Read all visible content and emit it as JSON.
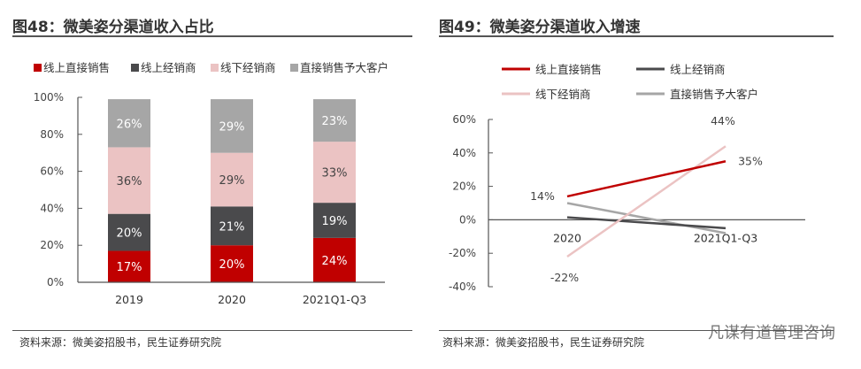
{
  "left": {
    "title": "图48：微美姿分渠道收入占比",
    "source": "资料来源：微美姿招股书，民生证券研究院"
  },
  "right": {
    "title": "图49：微美姿分渠道收入增速",
    "source": "资料来源：微美姿招股书，民生证券研究院"
  },
  "watermark": "凡谋有道管理咨询",
  "chart_data": [
    {
      "type": "bar",
      "stacked": true,
      "categories": [
        "2019",
        "2020",
        "2021Q1-Q3"
      ],
      "ylim": [
        0,
        100
      ],
      "yticks": [
        "0%",
        "20%",
        "40%",
        "60%",
        "80%",
        "100%"
      ],
      "legend": "top",
      "series": [
        {
          "name": "线上直接销售",
          "color": "#C00000",
          "values": [
            17,
            20,
            24
          ],
          "labels": [
            "17%",
            "20%",
            "24%"
          ]
        },
        {
          "name": "线上经销商",
          "color": "#4A4A4C",
          "values": [
            20,
            21,
            19
          ],
          "labels": [
            "20%",
            "21%",
            "19%"
          ]
        },
        {
          "name": "线下经销商",
          "color": "#EBC3C3",
          "values": [
            36,
            29,
            33
          ],
          "labels": [
            "36%",
            "29%",
            "33%"
          ]
        },
        {
          "name": "直接销售予大客户",
          "color": "#A6A6A6",
          "values": [
            26,
            29,
            23
          ],
          "labels": [
            "26%",
            "29%",
            "23%"
          ]
        }
      ]
    },
    {
      "type": "line",
      "categories": [
        "2020",
        "2021Q1-Q3"
      ],
      "ylim": [
        -40,
        60
      ],
      "yticks": [
        "-40%",
        "-20%",
        "0%",
        "20%",
        "40%",
        "60%"
      ],
      "legend": "top",
      "series": [
        {
          "name": "线上直接销售",
          "color": "#C00000",
          "values": [
            14,
            35
          ],
          "labels": [
            "14%",
            "35%"
          ]
        },
        {
          "name": "线上经销商",
          "color": "#4A4A4C",
          "values": [
            1.5,
            -5
          ],
          "labels": [
            "",
            ""
          ]
        },
        {
          "name": "线下经销商",
          "color": "#EBC3C3",
          "values": [
            -22,
            44
          ],
          "labels": [
            "-22%",
            "44%"
          ]
        },
        {
          "name": "直接销售予大客户",
          "color": "#A6A6A6",
          "values": [
            10,
            -8
          ],
          "labels": [
            "",
            ""
          ]
        }
      ]
    }
  ]
}
